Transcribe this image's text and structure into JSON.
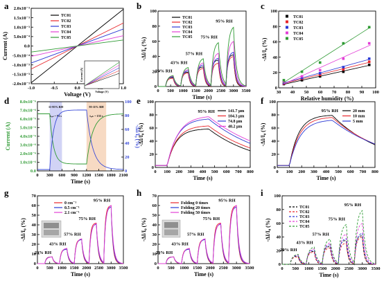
{
  "panel_labels": [
    "a",
    "b",
    "c",
    "d",
    "e",
    "f",
    "g",
    "h",
    "i"
  ],
  "colors": {
    "TC01": "#000000",
    "TC02": "#e8252a",
    "TC03": "#2a38d4",
    "TC04": "#e23fd6",
    "TC05": "#2e9a33",
    "e1": "#000000",
    "e2": "#e8252a",
    "e3": "#2a38d4",
    "e4": "#e23fd6",
    "d_current": "#2e9a33",
    "d_resp": "#3a4bd8",
    "d_band1": "#c9cbf3",
    "d_band2": "#f6d3b8"
  },
  "chart_data": [
    {
      "panel": "a",
      "type": "line",
      "xlabel": "Voltage (V)",
      "ylabel": "Current (A)",
      "xlim": [
        -1.0,
        1.0
      ],
      "ylim": [
        -0.002,
        0.002
      ],
      "xticks": [
        "-1.0",
        "-0.5",
        "0.0",
        "0.5",
        "1.0"
      ],
      "yticks": [
        "2.0x10⁻³",
        "1.5x10⁻³",
        "1.0x10⁻³",
        "5.0x10⁻⁴",
        "0.0",
        "-5.0x10⁻⁴",
        "-1.0x10⁻³",
        "-1.5x10⁻³",
        "-2.0x10⁻³"
      ],
      "series": [
        {
          "name": "TC01",
          "slope": 0.00195
        },
        {
          "name": "TC02",
          "slope": 0.00122
        },
        {
          "name": "TC03",
          "slope": 0.0009
        },
        {
          "name": "TC04",
          "slope": 0.00055
        },
        {
          "name": "TC05",
          "slope": 0.00032
        }
      ],
      "inset": {
        "xlabel": "Voltage (V)",
        "ylabel": "Current (A)",
        "xticks": [
          "-1.0",
          "-0.5",
          "0.0",
          "0.5",
          "1.0"
        ]
      }
    },
    {
      "panel": "b",
      "type": "line",
      "xlabel": "Time (s)",
      "ylabel": "-ΔI/I₀ (%)",
      "xlim": [
        0,
        3500
      ],
      "ylim": [
        0,
        100
      ],
      "xticks": [
        "0",
        "500",
        "1000",
        "1500",
        "2000",
        "2500",
        "3000",
        "3500"
      ],
      "yticks": [
        "0",
        "20",
        "40",
        "60",
        "80",
        "100"
      ],
      "annotations": [
        "29% RH",
        "43% RH",
        "57% RH",
        "75% RH",
        "95% RH"
      ],
      "pulses": [
        [
          300,
          600
        ],
        [
          900,
          1200
        ],
        [
          1500,
          1800
        ],
        [
          2100,
          2400
        ],
        [
          2700,
          3000
        ]
      ],
      "series": [
        {
          "name": "TC01",
          "peaks": [
            12,
            19,
            26,
            35,
            42
          ]
        },
        {
          "name": "TC02",
          "peaks": [
            11,
            18,
            24,
            31,
            40
          ]
        },
        {
          "name": "TC03",
          "peaks": [
            13,
            21,
            29,
            38,
            46
          ]
        },
        {
          "name": "TC04",
          "peaks": [
            14,
            23,
            32,
            45,
            61
          ]
        },
        {
          "name": "TC05",
          "peaks": [
            15,
            26,
            38,
            60,
            81
          ]
        }
      ]
    },
    {
      "panel": "c",
      "type": "scatter",
      "xlabel": "Relative humidity (%)",
      "ylabel": "-ΔI/I₀ (%)",
      "xlim": [
        25,
        100
      ],
      "ylim": [
        0,
        100
      ],
      "xticks": [
        "30",
        "40",
        "50",
        "60",
        "70",
        "80",
        "90",
        "100"
      ],
      "yticks": [
        "0",
        "20",
        "40",
        "60",
        "80",
        "100"
      ],
      "x": [
        29,
        43,
        57,
        75,
        95
      ],
      "series": [
        {
          "name": "TC01",
          "values": [
            5,
            10,
            15,
            21,
            30
          ]
        },
        {
          "name": "TC02",
          "values": [
            6,
            12,
            17,
            24,
            34
          ]
        },
        {
          "name": "TC03",
          "values": [
            7,
            13,
            19,
            27,
            38
          ]
        },
        {
          "name": "TC04",
          "values": [
            8,
            15,
            23,
            38,
            58
          ]
        },
        {
          "name": "TC05",
          "values": [
            10,
            21,
            33,
            58,
            79
          ]
        }
      ]
    },
    {
      "panel": "d",
      "type": "line",
      "xlabel": "Time (s)",
      "ylabel": "Current (A)",
      "ylabel_right": "-ΔI/I₀ (%)",
      "xlim": [
        0,
        2100
      ],
      "ylim": [
        0,
        8e-06
      ],
      "ylim_right": [
        0,
        100
      ],
      "xticks": [
        "0",
        "300",
        "600",
        "900",
        "1200",
        "1500",
        "1800",
        "2100"
      ],
      "yticks": [
        "8.0x10⁻⁶",
        "7.0x10⁻⁶",
        "6.0x10⁻⁶",
        "5.0x10⁻⁶",
        "4.0x10⁻⁶",
        "3.0x10⁻⁶",
        "2.0x10⁻⁶",
        "1.0x10⁻⁶",
        "0.0"
      ],
      "yticks_right": [
        "0",
        "20",
        "40",
        "60",
        "80",
        "100"
      ],
      "bands": [
        {
          "from": 300,
          "to": 600,
          "label": "11-95% RH",
          "sub": "tᵣₑₛ = 93 s"
        },
        {
          "from": 1200,
          "to": 1680,
          "label": "95-11% RH",
          "sub": "tᵣₑₖ = 155 s"
        }
      ]
    },
    {
      "panel": "e",
      "type": "line",
      "xlabel": "Time (s)",
      "ylabel": "-ΔI/I₀ (%)",
      "xlim": [
        0,
        800
      ],
      "ylim": [
        0,
        100
      ],
      "xticks": [
        "0",
        "100",
        "200",
        "300",
        "400",
        "500",
        "600",
        "700",
        "800"
      ],
      "yticks": [
        "0",
        "20",
        "40",
        "60",
        "80",
        "100"
      ],
      "annotations": [
        "95% RH"
      ],
      "series": [
        {
          "name": "141.7 μm",
          "peak": 59
        },
        {
          "name": "104.3 μm",
          "peak": 64
        },
        {
          "name": "74.8 μm",
          "peak": 75
        },
        {
          "name": "48.2 μm",
          "peak": 79
        }
      ]
    },
    {
      "panel": "f",
      "type": "line",
      "xlabel": "Time (s)",
      "ylabel": "-ΔI/I₀ (%)",
      "xlim": [
        0,
        800
      ],
      "ylim": [
        0,
        100
      ],
      "xticks": [
        "0",
        "100",
        "200",
        "300",
        "400",
        "500",
        "600",
        "700",
        "800"
      ],
      "yticks": [
        "0",
        "20",
        "40",
        "60",
        "80",
        "100"
      ],
      "annotations": [
        "95% RH"
      ],
      "series": [
        {
          "name": "20 mm",
          "peak": 80
        },
        {
          "name": "10 mm",
          "peak": 77
        },
        {
          "name": "5 mm",
          "peak": 73
        }
      ]
    },
    {
      "panel": "g",
      "type": "line",
      "xlabel": "Time (s)",
      "ylabel": "-ΔI/I₀ (%)",
      "xlim": [
        0,
        3500
      ],
      "ylim": [
        0,
        70
      ],
      "xticks": [
        "0",
        "500",
        "1000",
        "1500",
        "2000",
        "2500",
        "3000",
        "3500"
      ],
      "yticks": [
        "0",
        "10",
        "20",
        "30",
        "40",
        "50",
        "60",
        "70"
      ],
      "annotations": [
        "29% RH",
        "43% RH",
        "57% RH",
        "75% RH",
        "95% RH"
      ],
      "pulses": [
        [
          300,
          600
        ],
        [
          900,
          1200
        ],
        [
          1500,
          1800
        ],
        [
          2100,
          2400
        ],
        [
          2700,
          3000
        ]
      ],
      "series": [
        {
          "name": "0 cm⁻¹",
          "peaks": [
            7,
            15,
            25,
            42,
            60
          ]
        },
        {
          "name": "0.5 cm⁻¹",
          "peaks": [
            7,
            15,
            25,
            41,
            59
          ]
        },
        {
          "name": "2.1 cm⁻¹",
          "peaks": [
            7,
            16,
            26,
            42,
            61
          ]
        }
      ]
    },
    {
      "panel": "h",
      "type": "line",
      "xlabel": "Time (s)",
      "ylabel": "-ΔI/I₀ (%)",
      "xlim": [
        0,
        3500
      ],
      "ylim": [
        0,
        70
      ],
      "xticks": [
        "0",
        "500",
        "1000",
        "1500",
        "2000",
        "2500",
        "3000",
        "3500"
      ],
      "yticks": [
        "0",
        "10",
        "20",
        "30",
        "40",
        "50",
        "60",
        "70"
      ],
      "annotations": [
        "29% RH",
        "43% RH",
        "57% RH",
        "75% RH",
        "95% RH"
      ],
      "pulses": [
        [
          300,
          600
        ],
        [
          900,
          1200
        ],
        [
          1500,
          1800
        ],
        [
          2100,
          2400
        ],
        [
          2700,
          3000
        ]
      ],
      "series": [
        {
          "name": "Folding 0 times",
          "peaks": [
            7,
            15,
            25,
            42,
            60
          ]
        },
        {
          "name": "Folding 20 times",
          "peaks": [
            7,
            15,
            25,
            41,
            59
          ]
        },
        {
          "name": "Folding 50 times",
          "peaks": [
            7,
            16,
            26,
            42,
            61
          ]
        }
      ]
    },
    {
      "panel": "i",
      "type": "line",
      "xlabel": "Time (s)",
      "ylabel": "-ΔI/I₀ (%)",
      "xlim": [
        0,
        3500
      ],
      "ylim": [
        0,
        100
      ],
      "xticks": [
        "0",
        "500",
        "1000",
        "1500",
        "2000",
        "2500",
        "3000",
        "3500"
      ],
      "yticks": [
        "0",
        "20",
        "40",
        "60",
        "80",
        "100"
      ],
      "annotations": [
        "29% RH",
        "43% RH",
        "57% RH",
        "75% RH",
        "95% RH"
      ],
      "pulses": [
        [
          300,
          600
        ],
        [
          900,
          1200
        ],
        [
          1500,
          1800
        ],
        [
          2100,
          2400
        ],
        [
          2700,
          3000
        ]
      ],
      "series": [
        {
          "name": "TC01",
          "peaks": [
            12,
            19,
            26,
            35,
            42
          ]
        },
        {
          "name": "TC02",
          "peaks": [
            11,
            18,
            24,
            31,
            40
          ]
        },
        {
          "name": "TC03",
          "peaks": [
            13,
            21,
            29,
            38,
            46
          ]
        },
        {
          "name": "TC04",
          "peaks": [
            14,
            23,
            32,
            45,
            61
          ]
        },
        {
          "name": "TC05",
          "peaks": [
            15,
            26,
            38,
            60,
            81
          ]
        }
      ]
    }
  ]
}
